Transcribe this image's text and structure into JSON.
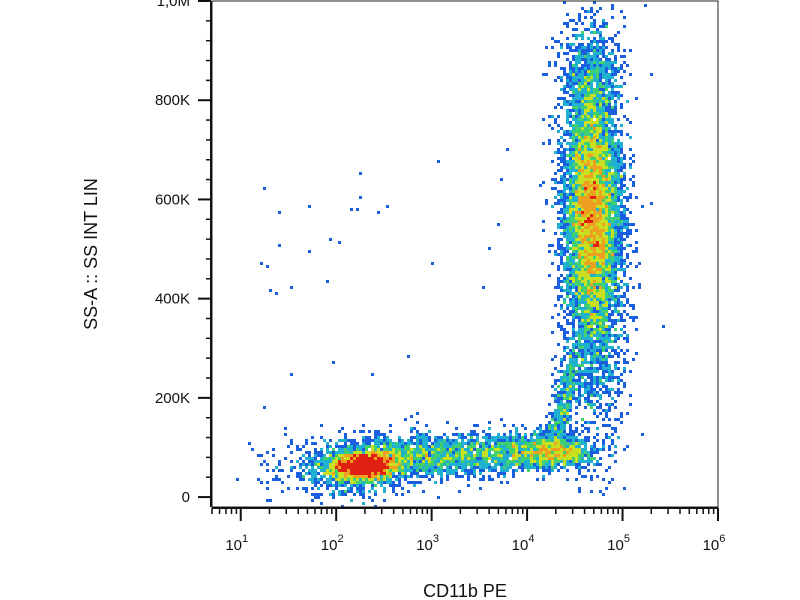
{
  "chart_data": {
    "type": "scatter",
    "title": "",
    "xlabel": "CD11b PE",
    "ylabel": "SS-A :: SS INT LIN",
    "x_scale": "log",
    "y_scale": "linear",
    "xlim": [
      5,
      1000000
    ],
    "ylim": [
      -20000,
      1000000
    ],
    "x_ticks": [
      {
        "value": 10,
        "base": "10",
        "exp": "1"
      },
      {
        "value": 100,
        "base": "10",
        "exp": "2"
      },
      {
        "value": 1000,
        "base": "10",
        "exp": "3"
      },
      {
        "value": 10000,
        "base": "10",
        "exp": "4"
      },
      {
        "value": 100000,
        "base": "10",
        "exp": "5"
      },
      {
        "value": 1000000,
        "base": "10",
        "exp": "6"
      }
    ],
    "y_ticks": [
      {
        "value": 0,
        "label": "0"
      },
      {
        "value": 200000,
        "label": "200K"
      },
      {
        "value": 400000,
        "label": "400K"
      },
      {
        "value": 600000,
        "label": "600K"
      },
      {
        "value": 800000,
        "label": "800K"
      },
      {
        "value": 1000000,
        "label": "1,0M"
      }
    ],
    "grid": false,
    "colormap": [
      "#1010c8",
      "#1a5fe0",
      "#20b0d0",
      "#40d070",
      "#c8e020",
      "#f0a020",
      "#e02010"
    ],
    "populations": [
      {
        "x_center": 190,
        "y_center": 62000,
        "approx_events": 3000
      },
      {
        "x_center": 1500,
        "y_center": 80000,
        "approx_events": 1800
      },
      {
        "x_center": 20000,
        "y_center": 90000,
        "approx_events": 1200
      },
      {
        "x_center": 48000,
        "y_center": 580000,
        "approx_events": 9000
      }
    ]
  }
}
